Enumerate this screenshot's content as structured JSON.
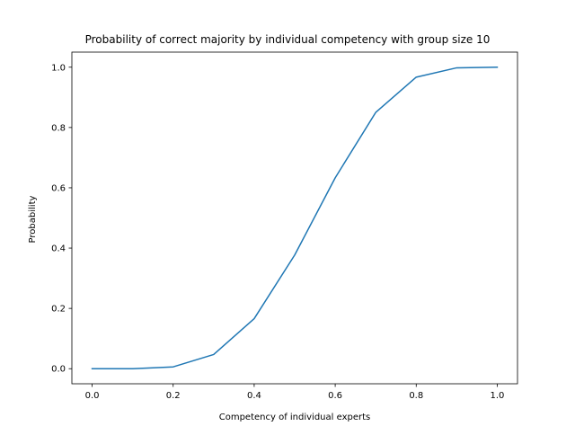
{
  "chart_data": {
    "type": "line",
    "title": "Probability of correct majority by individual competency with group size 10",
    "xlabel": "Competency of individual experts",
    "ylabel": "Probability",
    "xlim": [
      -0.05,
      1.05
    ],
    "ylim": [
      -0.05,
      1.05
    ],
    "xticks": [
      0.0,
      0.2,
      0.4,
      0.6,
      0.8,
      1.0
    ],
    "xtick_labels": [
      "0.0",
      "0.2",
      "0.4",
      "0.6",
      "0.8",
      "1.0"
    ],
    "yticks": [
      0.0,
      0.2,
      0.4,
      0.6,
      0.8,
      1.0
    ],
    "ytick_labels": [
      "0.0",
      "0.2",
      "0.4",
      "0.6",
      "0.8",
      "1.0"
    ],
    "grid": false,
    "series": [
      {
        "color": "#1f77b4",
        "x": [
          0.0,
          0.1,
          0.2,
          0.3,
          0.4,
          0.5,
          0.6,
          0.7,
          0.8,
          0.9,
          1.0
        ],
        "y": [
          0.0,
          0.0,
          0.006,
          0.047,
          0.166,
          0.377,
          0.633,
          0.85,
          0.967,
          0.998,
          1.0
        ]
      }
    ]
  }
}
